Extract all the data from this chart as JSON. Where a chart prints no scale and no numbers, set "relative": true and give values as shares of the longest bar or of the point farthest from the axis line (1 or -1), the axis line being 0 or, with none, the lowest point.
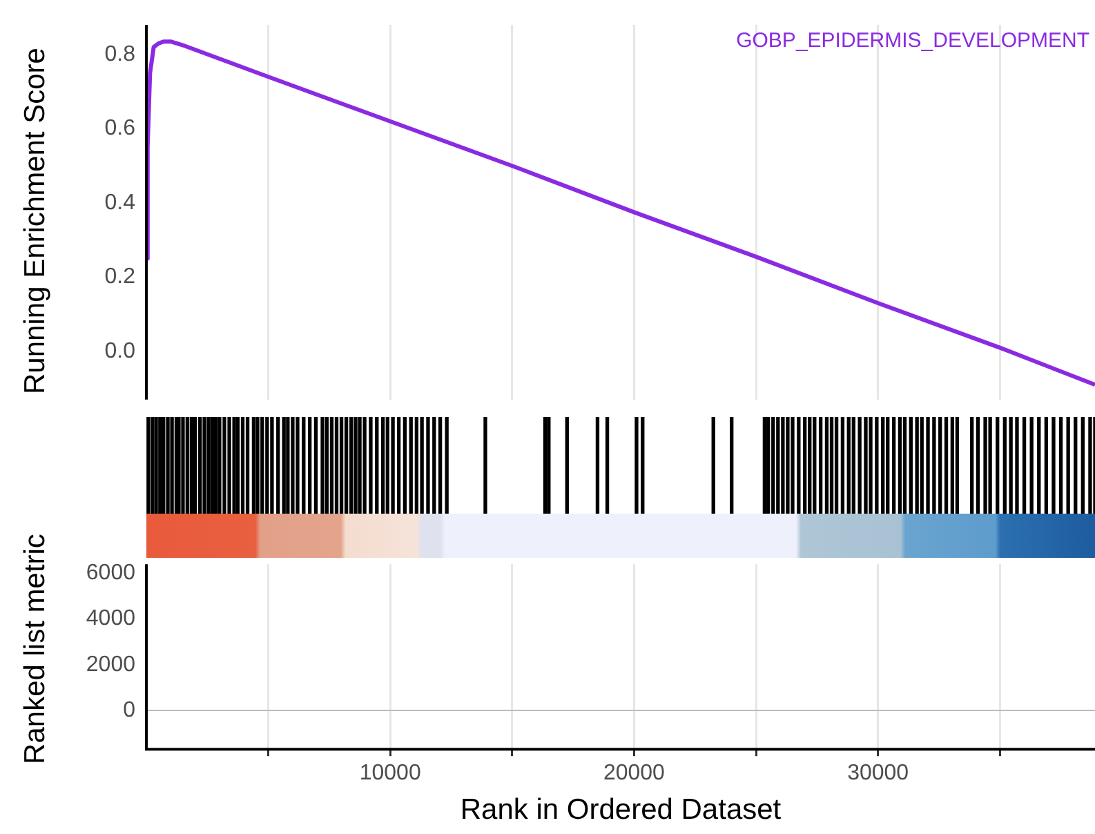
{
  "chart_data": [
    {
      "type": "line",
      "ylabel": "Running Enrichment Score",
      "xticks": [
        {
          "value": 5000,
          "label": null
        },
        10000,
        {
          "value": 15000,
          "label": null
        },
        20000,
        {
          "value": 25000,
          "label": null
        },
        30000,
        {
          "value": 35000,
          "label": null
        }
      ],
      "ylim": [
        -0.13,
        0.88
      ],
      "yticks": [
        {
          "value": 0,
          "label": "0.0"
        },
        0.2,
        0.4,
        0.6,
        0.8
      ],
      "tick_labels": "y",
      "grid": "x",
      "legend": "top right",
      "series": [
        {
          "name": "GOBP_EPIDERMIS_DEVELOPMENT",
          "color": "#8a2be2",
          "x": [
            0,
            50,
            150,
            300,
            500,
            700,
            1000,
            1500,
            5000,
            10000,
            15000,
            20000,
            25000,
            30000,
            35000,
            38900
          ],
          "values": [
            0.25,
            0.55,
            0.75,
            0.82,
            0.83,
            0.835,
            0.835,
            0.825,
            0.74,
            0.62,
            0.5,
            0.375,
            0.255,
            0.13,
            0.01,
            -0.09
          ]
        }
      ]
    },
    {
      "type": "bar",
      "relative": true,
      "xlim": [
        0,
        38900
      ],
      "tick_labels": false,
      "color": "#000000",
      "x": [
        80,
        250,
        400,
        560,
        700,
        880,
        1050,
        1230,
        1330,
        1500,
        1680,
        1850,
        2000,
        2200,
        2380,
        2550,
        2700,
        2850,
        3000,
        3200,
        3400,
        3600,
        3750,
        3950,
        4150,
        4400,
        4560,
        4750,
        4950,
        5150,
        5400,
        5640,
        5800,
        6000,
        6200,
        6450,
        6700,
        6950,
        7220,
        7400,
        7600,
        7800,
        8000,
        8200,
        8400,
        8580,
        8750,
        8950,
        9200,
        9450,
        9700,
        9890,
        10110,
        10350,
        10600,
        10850,
        11080,
        11300,
        11550,
        11800,
        12050,
        12320,
        13900,
        16350,
        16500,
        17250,
        18500,
        18900,
        20100,
        20350,
        23250,
        24000,
        25350,
        25500,
        25700,
        25900,
        26100,
        26300,
        26500,
        26750,
        27000,
        27200,
        27400,
        27650,
        27900,
        28100,
        28300,
        28550,
        28800,
        29000,
        29250,
        29500,
        29700,
        29950,
        30200,
        30400,
        30650,
        30900,
        31100,
        31350,
        31600,
        31800,
        32050,
        32300,
        32550,
        32800,
        33050,
        33250,
        33850,
        34100,
        34400,
        34600,
        34900,
        35200,
        35450,
        35700,
        36000,
        36300,
        36600,
        36900,
        37200,
        37500,
        37800,
        38100,
        38400,
        38700,
        38900
      ],
      "values": [
        1,
        1,
        1,
        1,
        1,
        1,
        1,
        1,
        1,
        1,
        1,
        1,
        1,
        1,
        1,
        1,
        1,
        1,
        1,
        1,
        1,
        1,
        1,
        1,
        1,
        1,
        1,
        1,
        1,
        1,
        1,
        1,
        1,
        1,
        1,
        1,
        1,
        1,
        1,
        1,
        1,
        1,
        1,
        1,
        1,
        1,
        1,
        1,
        1,
        1,
        1,
        1,
        1,
        1,
        1,
        1,
        1,
        1,
        1,
        1,
        1,
        1,
        1,
        1,
        1,
        1,
        1,
        1,
        1,
        1,
        1,
        1,
        1,
        1,
        1,
        1,
        1,
        1,
        1,
        1,
        1,
        1,
        1,
        1,
        1,
        1,
        1,
        1,
        1,
        1,
        1,
        1,
        1,
        1,
        1,
        1,
        1,
        1,
        1,
        1,
        1,
        1,
        1,
        1,
        1,
        1,
        1,
        1,
        1,
        1,
        1,
        1,
        1,
        1,
        1,
        1,
        1,
        1,
        1,
        1,
        1,
        1,
        1,
        1,
        1,
        1,
        1
      ]
    },
    {
      "type": "line",
      "ylabel": "Ranked list metric",
      "xlabel": "Rank in Ordered Dataset",
      "xlim": [
        0,
        38900
      ],
      "xticks": [
        {
          "value": 5000,
          "label": null
        },
        10000,
        {
          "value": 15000,
          "label": null
        },
        20000,
        {
          "value": 25000,
          "label": null
        },
        30000,
        {
          "value": 35000,
          "label": null
        }
      ],
      "ylim": [
        -1700,
        6400
      ],
      "yticks": [
        0,
        2000,
        4000,
        6000
      ],
      "grid": "x",
      "series": [
        {
          "color": "#bbbbbb",
          "x": [
            0,
            38900
          ],
          "values": [
            0,
            0
          ]
        }
      ]
    }
  ]
}
